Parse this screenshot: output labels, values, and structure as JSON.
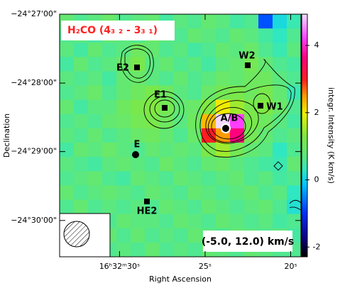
{
  "chart_data": {
    "type": "heatmap",
    "title": "H₂CO (4₃ ₂ - 3₃ ₁)",
    "annotation": "(-5.0, 12.0) km/s",
    "xlabel": "Right Ascension",
    "ylabel": "Declination",
    "colorbar_label": "integr. Intensity (K km/s)",
    "xlim": [
      33.5,
      19.4
    ],
    "xticks": [
      {
        "value": 30,
        "label": "16ʰ32ᵐ30ˢ"
      },
      {
        "value": 25,
        "label": "25ˢ"
      },
      {
        "value": 20,
        "label": "20ˢ"
      }
    ],
    "ylim": [
      -24.5088,
      -24.45
    ],
    "yticks": [
      {
        "value": -24.45,
        "label": "−24°27'00\""
      },
      {
        "value": -24.4667,
        "label": "−24°28'00\""
      },
      {
        "value": -24.4833,
        "label": "−24°29'00\""
      },
      {
        "value": -24.5,
        "label": "−24°30'00\""
      }
    ],
    "zlim": [
      -2.29,
      4.93
    ],
    "zticks": [
      -2,
      0,
      2,
      4
    ],
    "sources": [
      "A/B",
      "W1",
      "W2",
      "E1",
      "E2",
      "E",
      "HE2"
    ],
    "z": [
      [
        0.8,
        0.6,
        0.7,
        0.9,
        0.6,
        0.7,
        0.8,
        0.5,
        0.7,
        0.6,
        0.8,
        0.7,
        0.5,
        0.6,
        -0.8,
        0.1,
        0.4
      ],
      [
        0.6,
        0.7,
        0.5,
        0.8,
        0.7,
        0.6,
        0.9,
        0.7,
        0.6,
        0.8,
        0.7,
        0.6,
        0.8,
        0.7,
        0.5,
        0.3,
        0.6
      ],
      [
        0.7,
        0.5,
        0.8,
        0.6,
        0.7,
        1.0,
        0.8,
        0.6,
        0.7,
        0.5,
        0.6,
        0.8,
        0.7,
        0.9,
        0.6,
        0.4,
        0.7
      ],
      [
        0.5,
        0.8,
        0.6,
        0.7,
        0.9,
        1.2,
        0.7,
        0.8,
        0.6,
        0.7,
        0.5,
        0.7,
        0.8,
        1.1,
        0.8,
        0.6,
        0.5
      ],
      [
        0.7,
        0.6,
        0.7,
        0.5,
        0.8,
        0.9,
        0.7,
        0.6,
        0.8,
        0.6,
        0.7,
        0.9,
        0.8,
        1.0,
        1.0,
        0.7,
        0.6
      ],
      [
        0.6,
        0.7,
        0.9,
        0.6,
        0.8,
        1.0,
        1.2,
        1.0,
        0.7,
        0.6,
        0.9,
        1.1,
        1.2,
        1.0,
        1.2,
        0.8,
        0.4
      ],
      [
        0.8,
        0.5,
        0.7,
        0.7,
        1.0,
        1.2,
        1.3,
        1.1,
        0.8,
        0.9,
        1.3,
        2.0,
        1.5,
        1.2,
        1.3,
        0.9,
        0.6
      ],
      [
        0.6,
        0.7,
        0.6,
        0.8,
        0.9,
        1.1,
        1.2,
        1.0,
        0.7,
        1.0,
        2.3,
        4.9,
        4.2,
        1.2,
        1.0,
        0.7,
        0.5
      ],
      [
        0.7,
        0.6,
        0.8,
        0.6,
        0.7,
        0.9,
        1.0,
        0.8,
        0.6,
        0.9,
        3.0,
        2.5,
        3.6,
        1.1,
        0.8,
        0.6,
        0.7
      ],
      [
        0.5,
        0.8,
        0.7,
        0.9,
        0.7,
        0.6,
        0.8,
        0.7,
        0.8,
        0.7,
        1.2,
        1.5,
        1.1,
        0.8,
        0.7,
        0.3,
        0.6
      ],
      [
        0.7,
        0.6,
        0.5,
        0.7,
        0.8,
        0.7,
        0.6,
        0.9,
        0.7,
        0.6,
        0.8,
        0.9,
        0.7,
        0.6,
        0.5,
        0.4,
        0.8
      ],
      [
        0.6,
        0.7,
        0.8,
        0.6,
        0.5,
        0.8,
        0.7,
        0.6,
        0.8,
        0.7,
        0.6,
        0.7,
        0.8,
        0.6,
        0.7,
        0.5,
        0.6
      ],
      [
        0.8,
        0.6,
        0.7,
        0.8,
        0.7,
        0.6,
        0.8,
        0.7,
        0.6,
        0.8,
        0.7,
        0.6,
        0.7,
        0.8,
        0.6,
        0.7,
        0.3
      ],
      [
        0.6,
        0.8,
        0.6,
        0.7,
        0.6,
        0.7,
        0.6,
        0.8,
        0.7,
        0.6,
        0.8,
        0.7,
        0.6,
        0.7,
        0.8,
        0.6,
        0.2
      ],
      [
        0.7,
        0.5,
        0.8,
        0.6,
        0.8,
        0.7,
        0.7,
        0.6,
        0.8,
        0.7,
        0.6,
        0.8,
        0.7,
        0.6,
        0.7,
        0.5,
        0.6
      ],
      [
        0.6,
        0.7,
        0.6,
        0.8,
        0.6,
        0.8,
        0.6,
        0.7,
        0.6,
        0.8,
        0.7,
        0.6,
        0.8,
        0.7,
        0.6,
        0.7,
        0.5
      ],
      [
        0.5,
        0.6,
        0.7,
        0.6,
        0.7,
        0.6,
        0.8,
        0.6,
        0.7,
        0.6,
        0.8,
        0.7,
        0.6,
        0.8,
        0.7,
        0.6,
        0.6
      ]
    ]
  }
}
